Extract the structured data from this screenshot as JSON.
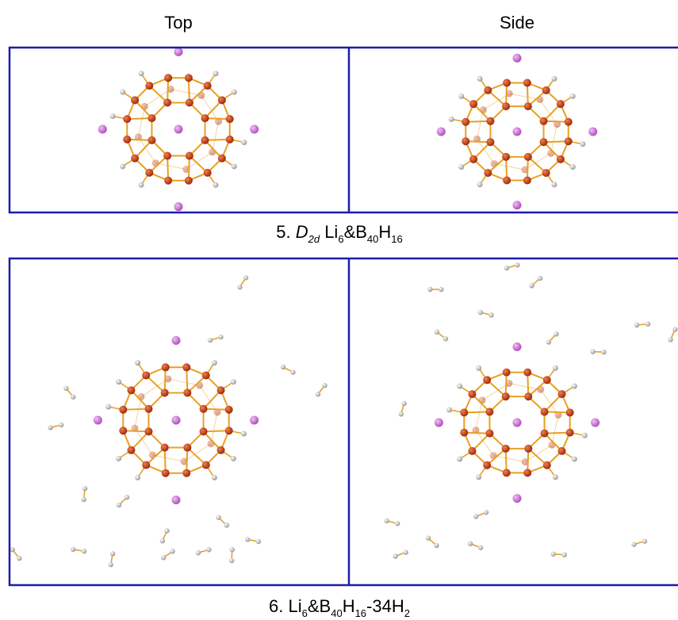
{
  "figure": {
    "headers": [
      "Top",
      "Side"
    ],
    "panels": [
      {
        "caption": [
          {
            "text": "5. "
          },
          {
            "text": "D",
            "italic": true
          },
          {
            "text": "2d",
            "italic": true,
            "sub": true
          },
          {
            "text": " Li"
          },
          {
            "text": "6",
            "sub": true
          },
          {
            "text": "&B"
          },
          {
            "text": "40",
            "sub": true
          },
          {
            "text": "H"
          },
          {
            "text": "16",
            "sub": true
          }
        ]
      },
      {
        "caption": [
          {
            "text": "6. Li"
          },
          {
            "text": "6",
            "sub": true
          },
          {
            "text": "&B"
          },
          {
            "text": "40",
            "sub": true
          },
          {
            "text": "H"
          },
          {
            "text": "16",
            "sub": true
          },
          {
            "text": "-34H"
          },
          {
            "text": "2",
            "sub": true
          }
        ]
      }
    ]
  }
}
